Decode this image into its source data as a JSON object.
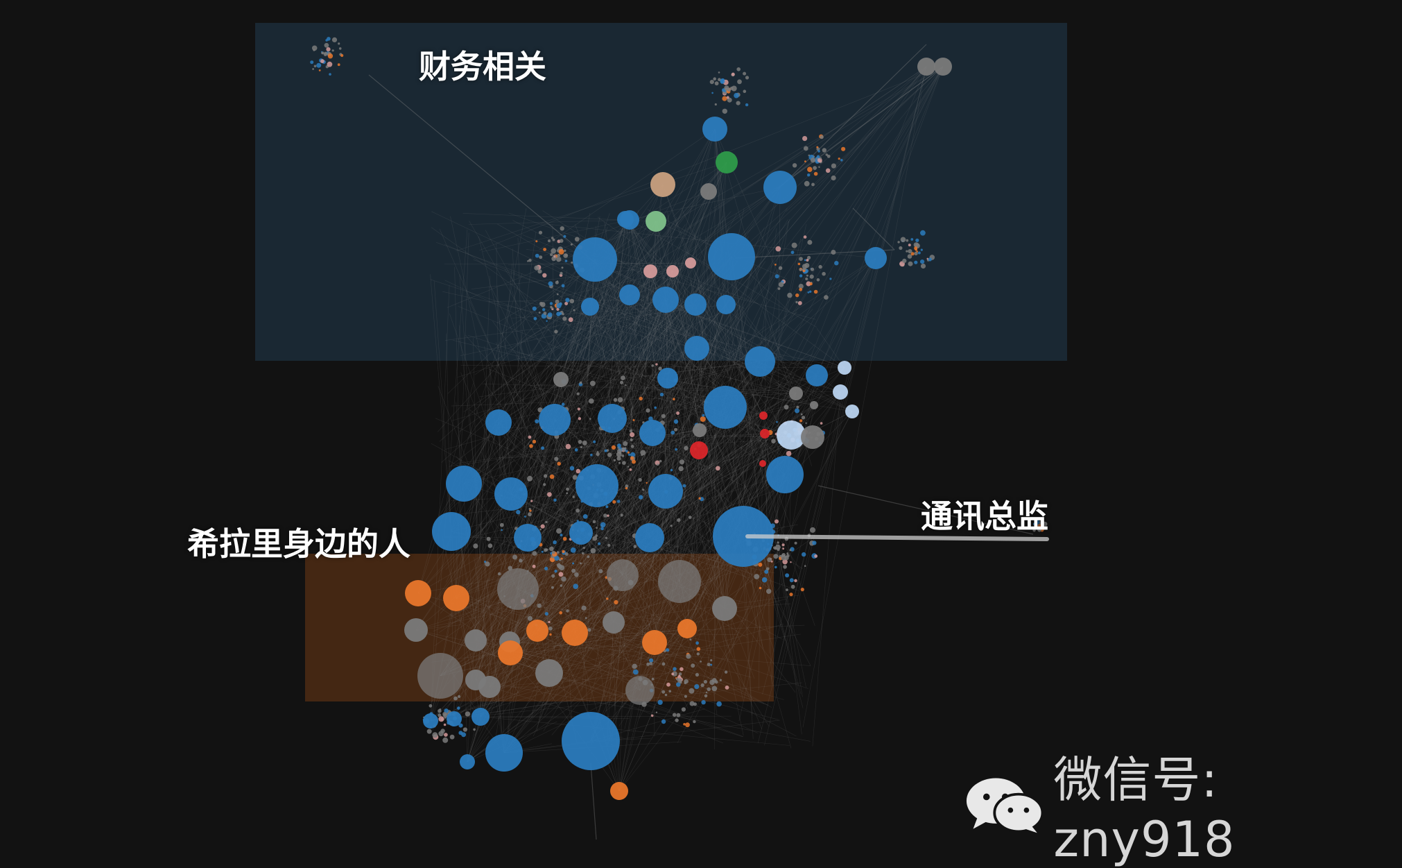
{
  "regions": {
    "finance": {
      "label": "财务相关",
      "color": "#1b2a36"
    },
    "hillary_circle": {
      "label": "希拉里身边的人",
      "color": "#4a2a14"
    }
  },
  "annotations": {
    "comms_director": {
      "label": "通讯总监"
    }
  },
  "watermark": {
    "icon": "wechat-icon",
    "text": "微信号: zny918"
  },
  "palette": {
    "blue": "#2b7bbd",
    "orange": "#e8762b",
    "gray": "#7a7a7a",
    "light_blue": "#b9d3ef",
    "red": "#d9262a",
    "green": "#2e9b4a",
    "light_green": "#7fc18a",
    "tan": "#c9a07f",
    "pink": "#d49a9a",
    "edge": "#8a8a8a"
  }
}
